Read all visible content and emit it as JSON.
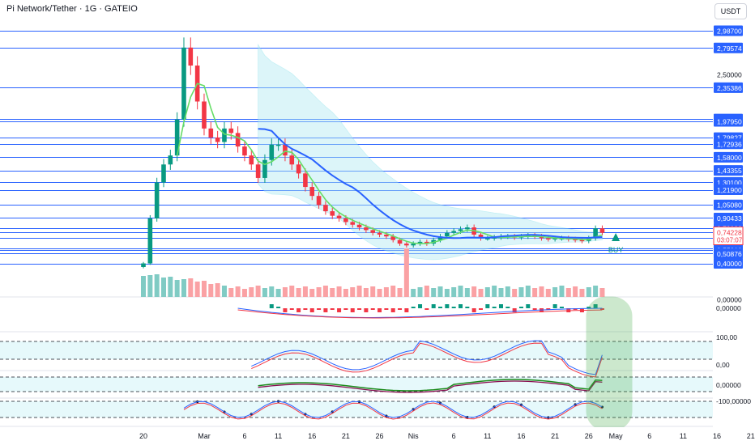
{
  "header": {
    "title": "Pi Network/Tether · 1G · GATEIO",
    "currency": "USDT"
  },
  "chart_data": {
    "type": "candlestick",
    "price_axis_labels": [
      "2,98700",
      "2,79574",
      "2,50000",
      "2,35386",
      "2,00529",
      "1,97950",
      "1,79827",
      "1,72936",
      "1,58000",
      "1,43355",
      "1,30100",
      "1,21900",
      "1,05080",
      "0,90433",
      "0,79028",
      "0,68164",
      "0,57126",
      "0,55010",
      "0,50876",
      "0,40000",
      "0,00000"
    ],
    "current_price": {
      "value": "0,74228",
      "countdown": "03:07:07",
      "color": "#f23645"
    },
    "x_ticks": [
      {
        "label": "20",
        "day": 0
      },
      {
        "label": "Mar",
        "day": 9
      },
      {
        "label": "6",
        "day": 15
      },
      {
        "label": "11",
        "day": 20
      },
      {
        "label": "16",
        "day": 25
      },
      {
        "label": "21",
        "day": 30
      },
      {
        "label": "26",
        "day": 35
      },
      {
        "label": "Nis",
        "day": 40
      },
      {
        "label": "6",
        "day": 46
      },
      {
        "label": "11",
        "day": 51
      },
      {
        "label": "16",
        "day": 56
      },
      {
        "label": "21",
        "day": 61
      },
      {
        "label": "26",
        "day": 66
      },
      {
        "label": "May",
        "day": 70
      },
      {
        "label": "6",
        "day": 75
      },
      {
        "label": "11",
        "day": 80
      },
      {
        "label": "16",
        "day": 85
      },
      {
        "label": "21",
        "day": 90
      },
      {
        "label": "26",
        "day": 95
      }
    ],
    "horizontal_levels": [
      2.987,
      2.79574,
      2.35386,
      2.00529,
      1.9795,
      1.79827,
      1.72936,
      1.58,
      1.43355,
      1.301,
      1.219,
      1.0508,
      0.90433,
      0.79028,
      0.74228,
      0.68164,
      0.57126,
      0.5501,
      0.50876,
      0.4
    ],
    "closes": [
      0.4,
      0.9,
      1.3,
      1.5,
      1.6,
      2.0,
      2.8,
      2.6,
      2.2,
      1.9,
      1.8,
      1.75,
      1.9,
      1.85,
      1.7,
      1.6,
      1.5,
      1.35,
      1.55,
      1.72,
      1.72,
      1.6,
      1.5,
      1.4,
      1.25,
      1.15,
      1.05,
      0.98,
      0.93,
      0.9,
      0.86,
      0.83,
      0.8,
      0.77,
      0.74,
      0.72,
      0.7,
      0.66,
      0.62,
      0.6,
      0.62,
      0.64,
      0.62,
      0.66,
      0.7,
      0.74,
      0.76,
      0.78,
      0.8,
      0.72,
      0.68,
      0.68,
      0.69,
      0.7,
      0.7,
      0.69,
      0.7,
      0.71,
      0.7,
      0.68,
      0.67,
      0.68,
      0.68,
      0.67,
      0.66,
      0.65,
      0.68,
      0.79,
      0.74
    ],
    "signal": {
      "label": "BUY",
      "day": 70,
      "color": "#089981"
    },
    "indicator_labels": {
      "macd_zero": "0,00000",
      "rsi_100": "100,00",
      "rsi_0": "0,00",
      "osc_zero": "0,00000",
      "osc_neg100": "-100,00000"
    },
    "grid": false,
    "colors": {
      "up": "#089981",
      "down": "#f23645",
      "levels": "#2962ff",
      "ma_fast": "#66dd66",
      "ma_slow": "#2962ff",
      "band": "#b2ebf2",
      "highlight": "#4caf50"
    }
  }
}
